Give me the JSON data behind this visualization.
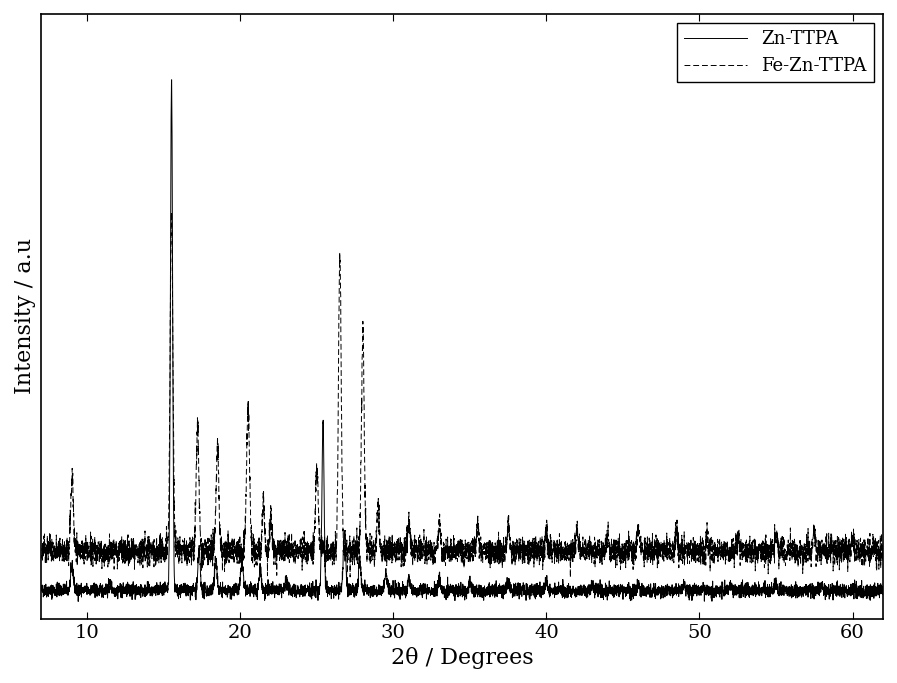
{
  "xlabel": "2θ / Degrees",
  "ylabel": "Intensity / a.u",
  "xlim": [
    7,
    62
  ],
  "legend_labels": [
    "Zn-TTPA",
    "Fe-Zn-TTPA"
  ],
  "background_color": "#ffffff",
  "line_color": "#000000",
  "label_fontsize": 16,
  "tick_fontsize": 14,
  "xticks": [
    10,
    20,
    30,
    40,
    50,
    60
  ],
  "seed": 42,
  "solid_baseline": 0.03,
  "dashed_baseline": 0.1,
  "noise_solid": 0.006,
  "noise_dashed": 0.012,
  "zn_peaks": [
    9.0,
    11.5,
    15.5,
    17.3,
    18.4,
    20.1,
    21.3,
    23.0,
    25.4,
    26.8,
    27.8,
    29.5,
    31.0,
    33.0,
    35.0,
    37.5,
    40.0,
    43.0,
    46.0,
    49.0,
    52.0,
    55.0,
    58.0
  ],
  "zn_heights": [
    0.04,
    0.01,
    0.9,
    0.07,
    0.06,
    0.05,
    0.04,
    0.02,
    0.3,
    0.1,
    0.06,
    0.03,
    0.02,
    0.02,
    0.015,
    0.015,
    0.015,
    0.01,
    0.01,
    0.01,
    0.01,
    0.01,
    0.01
  ],
  "zn_widths": [
    0.09,
    0.07,
    0.07,
    0.07,
    0.07,
    0.08,
    0.07,
    0.07,
    0.07,
    0.08,
    0.07,
    0.08,
    0.07,
    0.07,
    0.07,
    0.07,
    0.07,
    0.07,
    0.07,
    0.07,
    0.07,
    0.07,
    0.07
  ],
  "fezn_peaks": [
    9.0,
    15.5,
    17.2,
    18.5,
    20.5,
    21.5,
    22.0,
    25.0,
    26.5,
    28.0,
    29.0,
    31.0,
    33.0,
    35.5,
    37.5,
    40.0,
    42.0,
    44.0,
    46.0,
    48.5,
    50.5,
    52.5,
    55.0,
    57.5,
    60.0
  ],
  "fezn_heights": [
    0.13,
    0.6,
    0.22,
    0.18,
    0.25,
    0.09,
    0.06,
    0.14,
    0.52,
    0.38,
    0.08,
    0.05,
    0.05,
    0.04,
    0.05,
    0.04,
    0.04,
    0.03,
    0.04,
    0.04,
    0.03,
    0.03,
    0.03,
    0.03,
    0.03
  ],
  "fezn_widths": [
    0.09,
    0.09,
    0.09,
    0.09,
    0.1,
    0.07,
    0.07,
    0.09,
    0.09,
    0.09,
    0.07,
    0.08,
    0.07,
    0.07,
    0.07,
    0.07,
    0.07,
    0.07,
    0.07,
    0.07,
    0.07,
    0.07,
    0.07,
    0.07,
    0.07
  ]
}
